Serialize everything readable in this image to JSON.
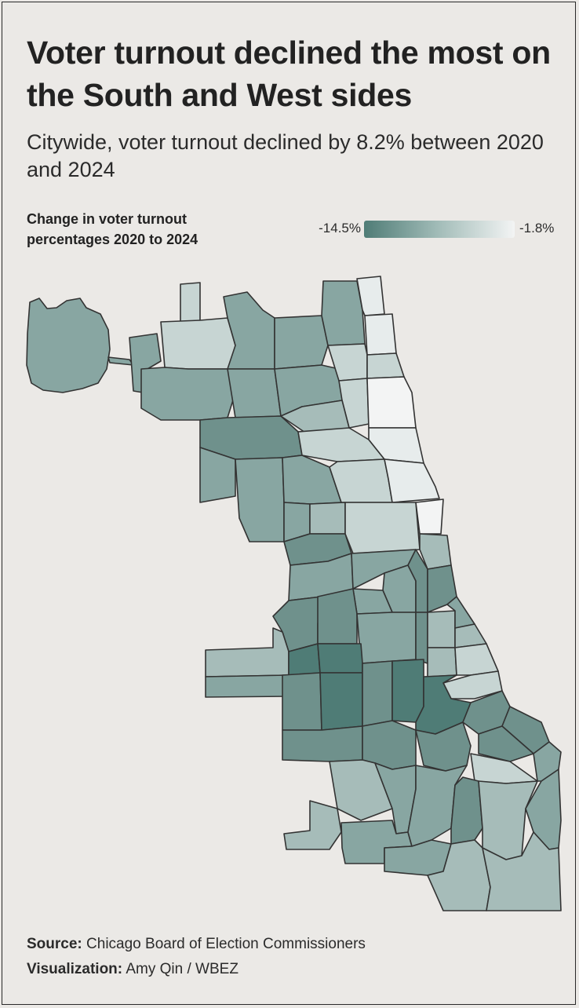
{
  "title": "Voter turnout declined the most on the South and West sides",
  "subtitle": "Citywide, voter turnout declined by 8.2% between 2020 and 2024",
  "legend": {
    "title": "Change in voter turnout percentages 2020 to 2024",
    "min_label": "-14.5%",
    "max_label": "-1.8%",
    "color_low": "#4f7c76",
    "color_high": "#f3f4f4"
  },
  "map": {
    "region": "Chicago wards",
    "fill_colors": [
      "#4f7c76",
      "#6f918c",
      "#88a6a2",
      "#a6bcb9",
      "#c7d5d3",
      "#e7ecec",
      "#f3f4f4"
    ],
    "border_color": "#333333"
  },
  "footer": {
    "source_label": "Source:",
    "source_text": " Chicago Board of Election Commissioners",
    "viz_label": "Visualization:",
    "viz_text": " Amy Qin / WBEZ"
  }
}
